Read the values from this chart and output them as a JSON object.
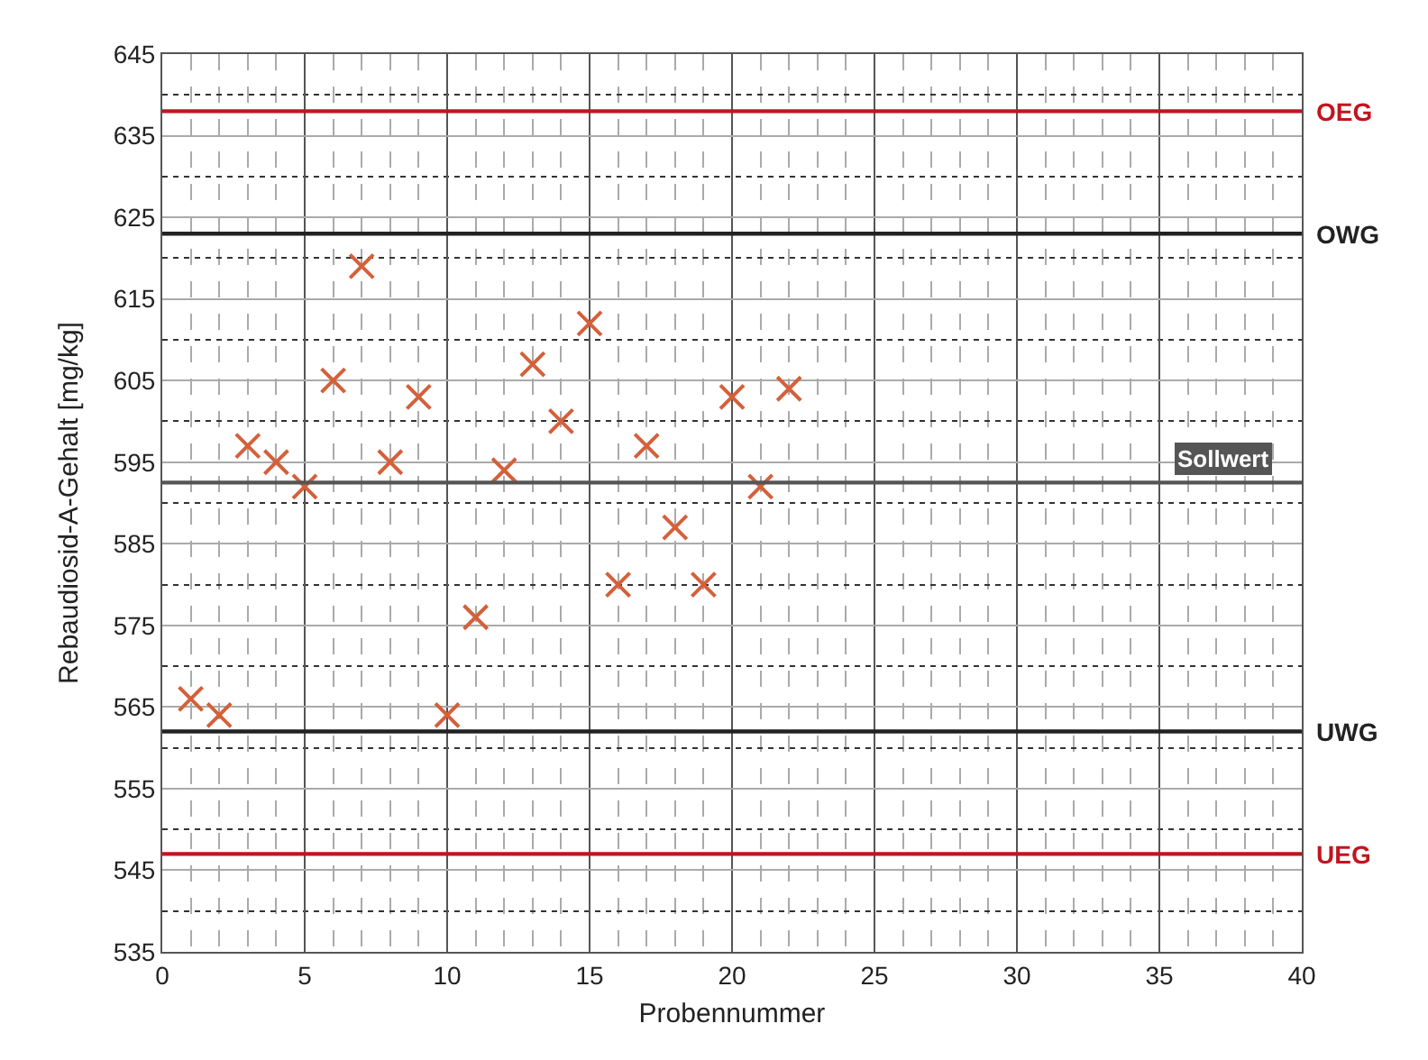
{
  "chart_data": {
    "type": "scatter",
    "xlabel": "Probennummer",
    "ylabel": "Rebaudiosid-A-Gehalt [mg/kg]",
    "x": [
      1,
      2,
      3,
      4,
      5,
      6,
      7,
      8,
      9,
      10,
      11,
      12,
      13,
      14,
      15,
      16,
      17,
      18,
      19,
      20,
      21,
      22
    ],
    "series": [
      {
        "color": "#d4603a",
        "values": [
          566,
          564,
          597,
          595,
          592,
          605,
          619,
          595,
          603,
          564,
          576,
          594,
          607,
          600,
          612,
          580,
          597,
          587,
          580,
          603,
          592,
          604
        ]
      }
    ],
    "marker": "cross",
    "grid": true,
    "xlim": [
      0,
      40
    ],
    "xticks": [
      0,
      5,
      10,
      15,
      20,
      25,
      30,
      35,
      40
    ],
    "ylim": [
      535,
      645
    ],
    "yticks": [
      535,
      545,
      555,
      565,
      575,
      585,
      595,
      605,
      615,
      625,
      635,
      645
    ],
    "ref_lines": [
      {
        "axis": "y",
        "value": 638,
        "label": "OEG",
        "color": "#c0151f"
      },
      {
        "axis": "y",
        "value": 623,
        "label": "OWG",
        "color": "#222222"
      },
      {
        "axis": "y",
        "value": 592.5,
        "label": "Sollwert",
        "color": "#555555"
      },
      {
        "axis": "y",
        "value": 562,
        "label": "UWG",
        "color": "#222222"
      },
      {
        "axis": "y",
        "value": 547,
        "label": "UEG",
        "color": "#c0151f"
      }
    ]
  }
}
